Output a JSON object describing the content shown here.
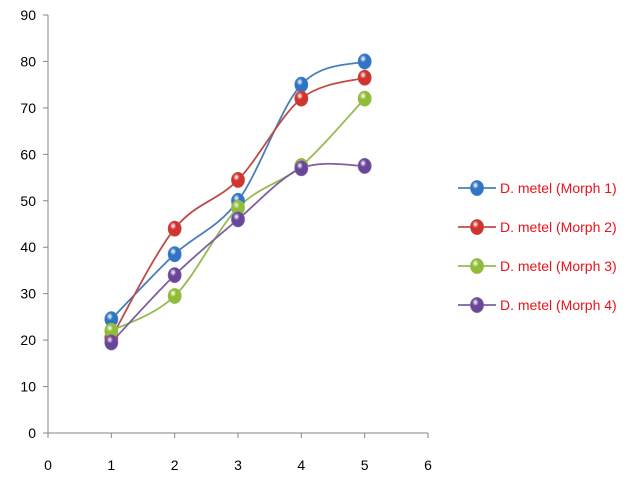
{
  "chart_data": {
    "type": "line",
    "smooth": true,
    "x": [
      1,
      2,
      3,
      4,
      5
    ],
    "series": [
      {
        "name": "D. metel (Morph 1)",
        "color": "#4a7ebb",
        "marker": "#2e75c6",
        "values": [
          24.5,
          38.5,
          50,
          75,
          80
        ]
      },
      {
        "name": "D. metel (Morph 2)",
        "color": "#be4b48",
        "marker": "#d1332e",
        "values": [
          20.5,
          44,
          54.5,
          72,
          76.5
        ]
      },
      {
        "name": "D. metel (Morph 3)",
        "color": "#98b954",
        "marker": "#8fbe36",
        "values": [
          22,
          29.5,
          48.5,
          57.5,
          72
        ]
      },
      {
        "name": "D. metel (Morph 4)",
        "color": "#7d60a0",
        "marker": "#6a469a",
        "values": [
          19.5,
          34,
          46,
          57,
          57.5
        ]
      }
    ],
    "xlim": [
      0,
      6
    ],
    "ylim": [
      0,
      90
    ],
    "xticks": [
      0,
      1,
      2,
      3,
      4,
      5,
      6
    ],
    "yticks": [
      0,
      10,
      20,
      30,
      40,
      50,
      60,
      70,
      80,
      90
    ],
    "grid": false,
    "legend_position": "right"
  }
}
